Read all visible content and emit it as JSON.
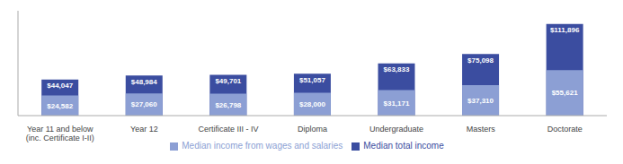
{
  "chart_data": {
    "type": "bar",
    "categories": [
      "Year 11 and below\n(inc. Certificate I-II)",
      "Year 12",
      "Certificate III - IV",
      "Diploma",
      "Undergraduate",
      "Masters",
      "Doctorate"
    ],
    "series": [
      {
        "name": "Median total income",
        "color": "#3B4DA0",
        "values": [
          44047,
          48984,
          49701,
          51057,
          63833,
          75098,
          111896
        ],
        "value_labels": [
          "$44,047",
          "$48,984",
          "$49,701",
          "$51,057",
          "$63,833",
          "$75,098",
          "$111,896"
        ]
      },
      {
        "name": "Median income from wages and salaries",
        "color": "#8C9FD4",
        "values": [
          24582,
          27060,
          26798,
          28000,
          31171,
          37310,
          55621
        ],
        "value_labels": [
          "$24,582",
          "$27,060",
          "$26,798",
          "$28,000",
          "$31,171",
          "$37,310",
          "$55,621"
        ]
      }
    ],
    "ylim": [
      0,
      128000
    ],
    "grid": false,
    "legend": "bottom",
    "data_labels": true,
    "tick_labels": "x"
  }
}
